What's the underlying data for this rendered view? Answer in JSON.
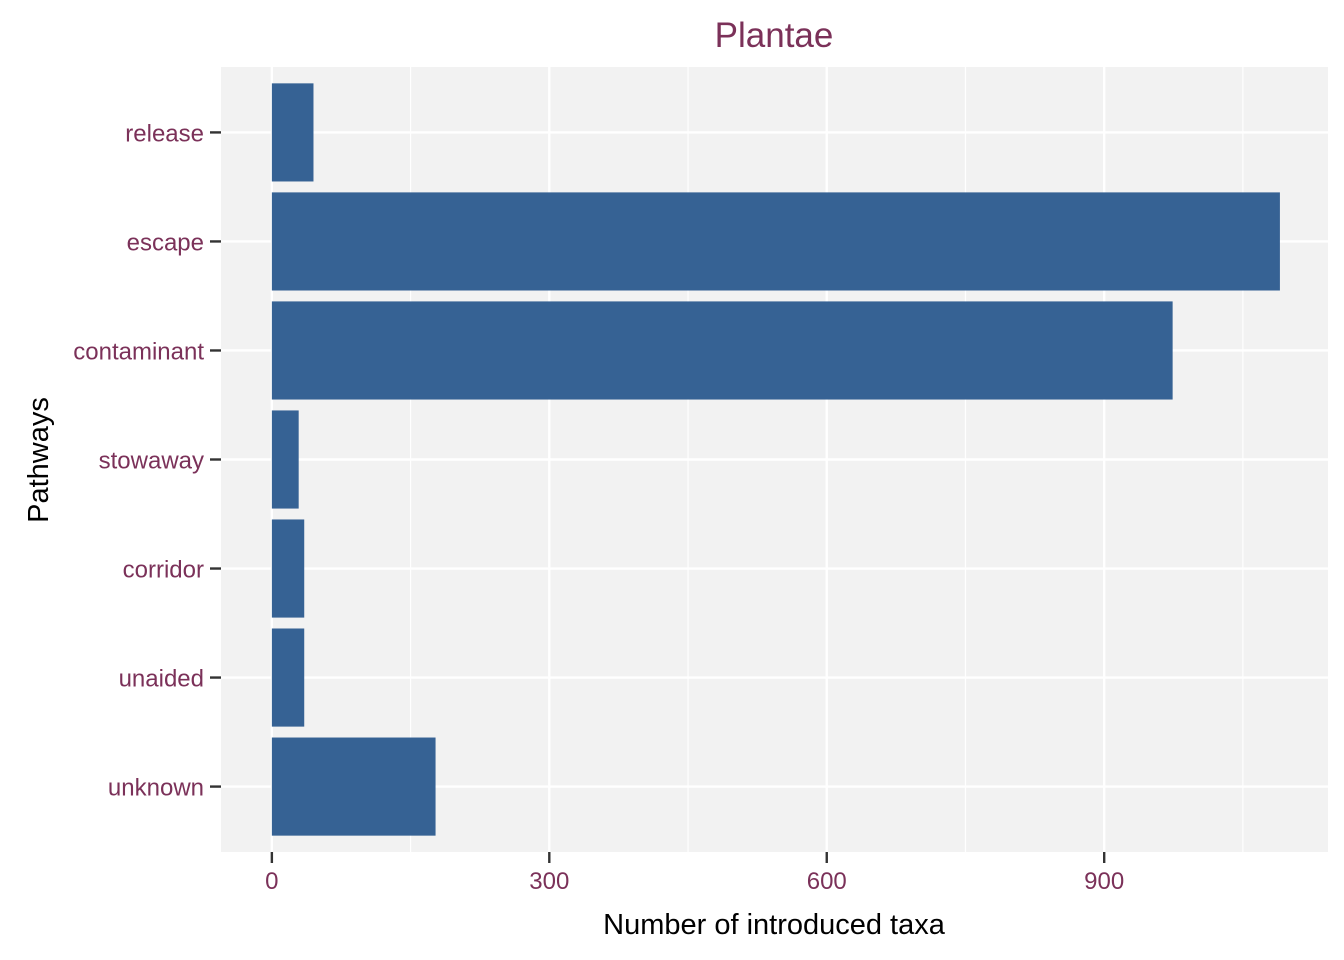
{
  "chart_data": {
    "type": "bar",
    "orientation": "horizontal",
    "title": "Plantae",
    "xlabel": "Number of introduced taxa",
    "ylabel": "Pathways",
    "categories": [
      "release",
      "escape",
      "contaminant",
      "stowaway",
      "corridor",
      "unaided",
      "unknown"
    ],
    "values": [
      45,
      1090,
      974,
      29,
      35,
      35,
      177
    ],
    "x_ticks": [
      0,
      300,
      600,
      900
    ],
    "x_tick_labels": [
      "0",
      "300",
      "600",
      "900"
    ],
    "xlim": [
      -55,
      1142
    ],
    "grid": true,
    "colors": {
      "bar": "#366294",
      "panel": "#f2f2f2",
      "grid": "#ffffff",
      "accent": "#7b3159",
      "axis_title": "#000000",
      "tick": "#333333"
    }
  }
}
